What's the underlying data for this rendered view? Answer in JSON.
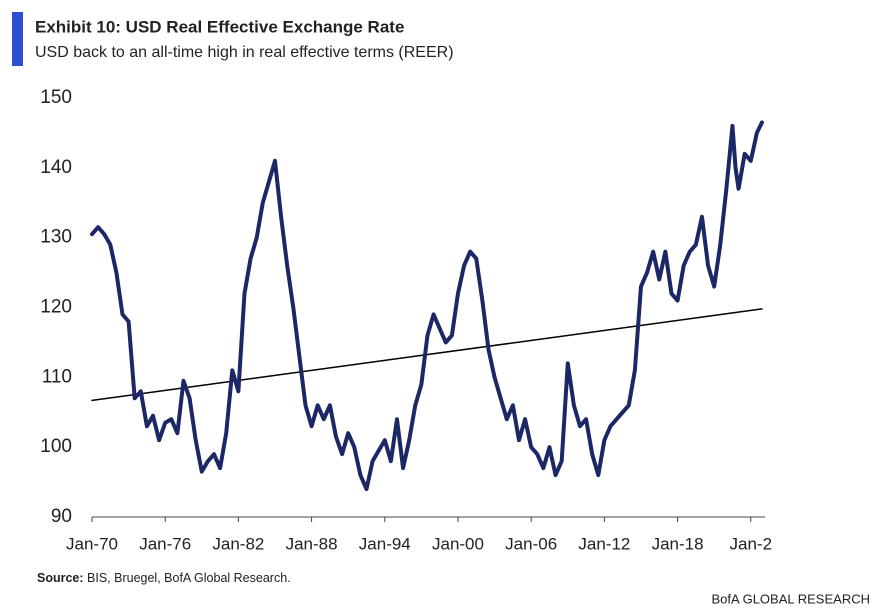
{
  "chart_data": {
    "type": "line",
    "title": "Exhibit 10: USD Real Effective Exchange Rate",
    "subtitle": "USD back to an all-time high in real effective terms (REER)",
    "source_label": "Source:",
    "source": "BIS, Bruegel, BofA Global Research.",
    "brand": "BofA GLOBAL RESEARCH",
    "x": [
      "1970-01",
      "1970-07",
      "1971-01",
      "1971-07",
      "1972-01",
      "1972-07",
      "1973-01",
      "1973-07",
      "1974-01",
      "1974-07",
      "1975-01",
      "1975-07",
      "1976-01",
      "1976-07",
      "1977-01",
      "1977-07",
      "1978-01",
      "1978-07",
      "1979-01",
      "1979-07",
      "1980-01",
      "1980-07",
      "1981-01",
      "1981-07",
      "1982-01",
      "1982-07",
      "1983-01",
      "1983-07",
      "1984-01",
      "1984-07",
      "1985-01",
      "1985-07",
      "1986-01",
      "1986-07",
      "1987-01",
      "1987-07",
      "1988-01",
      "1988-07",
      "1989-01",
      "1989-07",
      "1990-01",
      "1990-07",
      "1991-01",
      "1991-07",
      "1992-01",
      "1992-07",
      "1993-01",
      "1993-07",
      "1994-01",
      "1994-07",
      "1995-01",
      "1995-07",
      "1996-01",
      "1996-07",
      "1997-01",
      "1997-07",
      "1998-01",
      "1998-07",
      "1999-01",
      "1999-07",
      "2000-01",
      "2000-07",
      "2001-01",
      "2001-07",
      "2002-01",
      "2002-07",
      "2003-01",
      "2003-07",
      "2004-01",
      "2004-07",
      "2005-01",
      "2005-07",
      "2006-01",
      "2006-07",
      "2007-01",
      "2007-07",
      "2008-01",
      "2008-07",
      "2009-01",
      "2009-07",
      "2010-01",
      "2010-07",
      "2011-01",
      "2011-07",
      "2012-01",
      "2012-07",
      "2013-01",
      "2013-07",
      "2014-01",
      "2014-07",
      "2015-01",
      "2015-07",
      "2016-01",
      "2016-07",
      "2017-01",
      "2017-07",
      "2018-01",
      "2018-07",
      "2019-01",
      "2019-07",
      "2020-01",
      "2020-07",
      "2021-01",
      "2021-07",
      "2022-01",
      "2022-07",
      "2022-10",
      "2023-01",
      "2023-07",
      "2024-01",
      "2024-07",
      "2024-12"
    ],
    "series": [
      {
        "color": "#1c2766",
        "values": [
          130.5,
          131.5,
          130.5,
          129,
          125,
          119,
          118,
          107,
          108,
          103,
          104.5,
          101,
          103.5,
          104,
          102,
          109.5,
          107,
          101,
          96.5,
          98,
          99,
          97,
          102,
          111,
          108,
          122,
          127,
          130,
          135,
          138,
          141,
          133,
          126,
          120,
          113,
          106,
          103,
          106,
          104,
          106,
          101.5,
          99,
          102,
          100,
          96,
          94,
          98,
          99.5,
          101,
          98,
          104,
          97,
          101,
          106,
          109,
          116,
          119,
          117,
          115,
          116,
          122,
          126,
          128,
          127,
          121,
          114,
          110,
          107,
          104,
          106,
          101,
          104,
          100,
          99,
          97,
          100,
          96,
          98,
          112,
          106,
          103,
          104,
          99,
          96,
          101,
          103,
          104,
          105,
          106,
          111,
          123,
          125,
          128,
          124,
          128,
          122,
          121,
          126,
          128,
          129,
          133,
          126,
          123,
          129,
          137,
          146,
          140,
          137,
          142,
          141,
          145,
          146.5
        ]
      }
    ],
    "trend_line": {
      "color": "#000000",
      "x": [
        "1970-01",
        "2024-12"
      ],
      "values": [
        106.7,
        119.8
      ]
    },
    "xlim": [
      "1970-01",
      "2025-03"
    ],
    "xticks": [
      {
        "value": "1970-01",
        "label": "Jan-70"
      },
      {
        "value": "1976-01",
        "label": "Jan-76"
      },
      {
        "value": "1982-01",
        "label": "Jan-82"
      },
      {
        "value": "1988-01",
        "label": "Jan-88"
      },
      {
        "value": "1994-01",
        "label": "Jan-94"
      },
      {
        "value": "2000-01",
        "label": "Jan-00"
      },
      {
        "value": "2006-01",
        "label": "Jan-06"
      },
      {
        "value": "2012-01",
        "label": "Jan-12"
      },
      {
        "value": "2018-01",
        "label": "Jan-18"
      },
      {
        "value": "2024-01",
        "label": "Jan-2"
      }
    ],
    "ylim": [
      90,
      150
    ],
    "yticks": [
      90,
      100,
      110,
      120,
      130,
      140,
      150
    ],
    "grid": false
  }
}
